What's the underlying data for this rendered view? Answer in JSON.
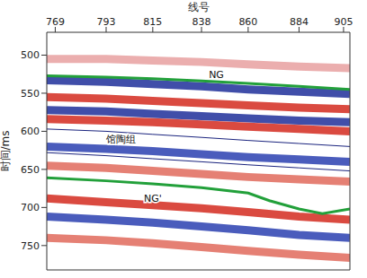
{
  "chart_data": {
    "type": "line",
    "x_label": "线号",
    "y_label": "时间/ms",
    "xlim": [
      765,
      908
    ],
    "xticks": [
      769,
      793,
      815,
      838,
      860,
      884,
      905
    ],
    "ylim": [
      470,
      782
    ],
    "yticks": [
      500,
      550,
      600,
      650,
      700,
      750
    ],
    "grid": false,
    "series": [
      {
        "color": "#e8a0a0",
        "line_style": "band",
        "x": [
          765,
          793,
          815,
          838,
          860,
          884,
          908
        ],
        "values": [
          505,
          505,
          507,
          509,
          512,
          515,
          517
        ]
      },
      {
        "color": "#1f2f9a",
        "line_style": "band",
        "x": [
          765,
          793,
          815,
          838,
          860,
          884,
          908
        ],
        "values": [
          533,
          535,
          538,
          541,
          545,
          548,
          551
        ]
      },
      {
        "color": "#d42a1e",
        "line_style": "band",
        "x": [
          765,
          793,
          815,
          838,
          860,
          884,
          908
        ],
        "values": [
          555,
          557,
          560,
          563,
          566,
          569,
          571
        ]
      },
      {
        "color": "#1f2f9a",
        "line_style": "band",
        "x": [
          765,
          793,
          815,
          838,
          860,
          884,
          908
        ],
        "values": [
          572,
          574,
          577,
          580,
          583,
          586,
          588
        ]
      },
      {
        "color": "#d42a1e",
        "line_style": "band",
        "x": [
          765,
          793,
          815,
          838,
          860,
          884,
          908
        ],
        "values": [
          584,
          586,
          588,
          591,
          594,
          597,
          600
        ]
      },
      {
        "color": "#2a3fb0",
        "line_style": "band",
        "x": [
          765,
          793,
          815,
          838,
          860,
          884,
          908
        ],
        "values": [
          620,
          623,
          626,
          630,
          634,
          637,
          640
        ]
      },
      {
        "color": "#e06a5c",
        "line_style": "band",
        "x": [
          765,
          793,
          815,
          838,
          860,
          884,
          908
        ],
        "values": [
          645,
          648,
          652,
          656,
          660,
          663,
          666
        ]
      },
      {
        "color": "#d42a1e",
        "line_style": "band",
        "x": [
          765,
          793,
          815,
          838,
          860,
          884,
          908
        ],
        "values": [
          688,
          693,
          697,
          701,
          706,
          712,
          716
        ]
      },
      {
        "color": "#2a3fb0",
        "line_style": "band",
        "x": [
          765,
          793,
          815,
          838,
          860,
          884,
          908
        ],
        "values": [
          712,
          716,
          720,
          725,
          730,
          736,
          740
        ]
      },
      {
        "color": "#e06a5c",
        "line_style": "band",
        "x": [
          765,
          793,
          815,
          838,
          860,
          884,
          908
        ],
        "values": [
          740,
          743,
          747,
          752,
          757,
          762,
          766
        ]
      },
      {
        "color": "#1a237e",
        "line_style": "solid",
        "x": [
          765,
          793,
          815,
          838,
          860,
          884,
          908
        ],
        "values": [
          597,
          600,
          604,
          608,
          612,
          616,
          620
        ]
      },
      {
        "color": "#1a237e",
        "line_style": "solid",
        "x": [
          765,
          793,
          815,
          838,
          860,
          884,
          908
        ],
        "values": [
          628,
          632,
          636,
          640,
          644,
          648,
          652
        ]
      },
      {
        "name": "NG",
        "color": "#22a03a",
        "line_style": "solid",
        "x": [
          765,
          793,
          815,
          838,
          860,
          884,
          908
        ],
        "values": [
          527,
          529,
          531,
          534,
          537,
          541,
          545
        ]
      },
      {
        "name": "NG'",
        "color": "#22a03a",
        "line_style": "solid",
        "x": [
          765,
          793,
          815,
          838,
          860,
          870,
          884,
          895,
          908
        ],
        "values": [
          661,
          665,
          669,
          674,
          681,
          691,
          702,
          708,
          702
        ]
      }
    ],
    "annotations": [
      {
        "text": "NG",
        "x": 845,
        "y": 525
      },
      {
        "text": "馆陶组",
        "x": 800,
        "y": 610
      },
      {
        "text": "NG'",
        "x": 815,
        "y": 688
      }
    ]
  }
}
